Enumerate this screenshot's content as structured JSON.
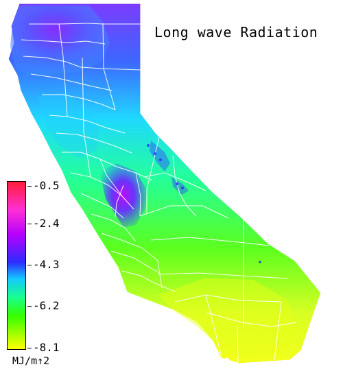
{
  "title": "Long wave Radiation",
  "legend": {
    "ticks": [
      "-0.5",
      "-2.4",
      "-4.3",
      "-6.2",
      "-8.1"
    ],
    "units": "MJ/m↑2"
  },
  "colors": {
    "background": "#ffffff",
    "max": "#ff1f3a",
    "high": "#ff2fd5",
    "upper_mid": "#b300ff",
    "mid": "#2c2cff",
    "lower_mid": "#15c9ff",
    "low": "#33ff00",
    "min": "#ffff00"
  }
}
